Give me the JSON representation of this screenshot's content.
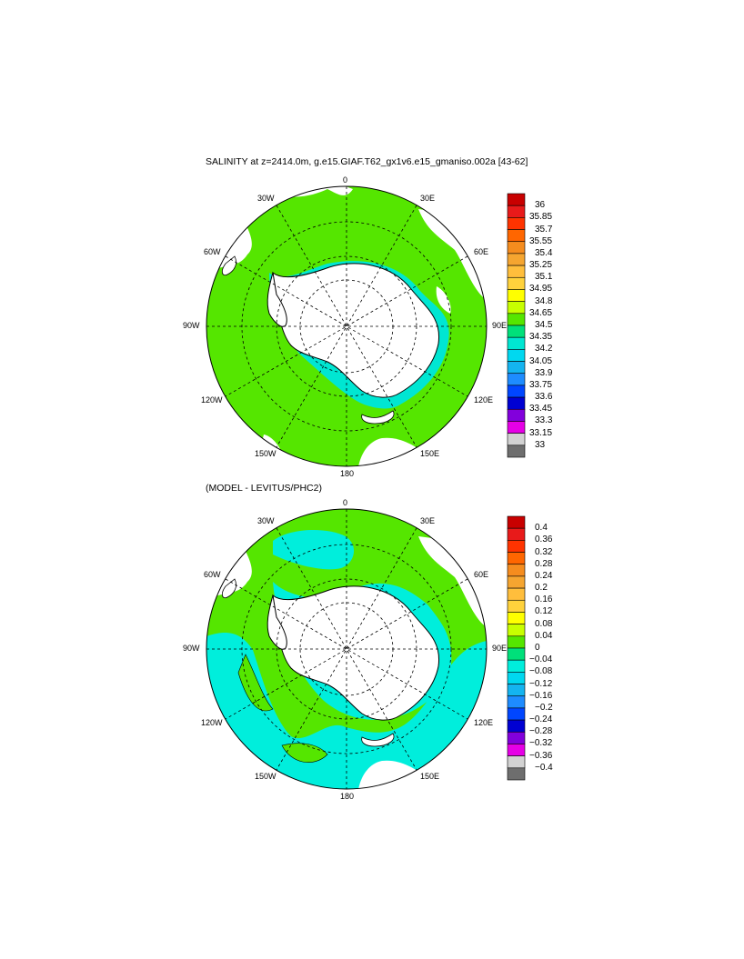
{
  "panel1": {
    "title": "SALINITY at z=2414.0m, g.e15.GIAF.T62_gx1v6.e15_gmaniso.002a [43-62]",
    "lon_labels": {
      "n": "0",
      "ne1": "30E",
      "ne2": "60E",
      "e": "90E",
      "se1": "120E",
      "se2": "150E",
      "s": "180",
      "sw1": "150W",
      "sw2": "120W",
      "w": "90W",
      "nw1": "60W",
      "nw2": "30W"
    },
    "colorbar": {
      "labels": [
        "36",
        "35.85",
        "35.7",
        "35.55",
        "35.4",
        "35.25",
        "35.1",
        "34.95",
        "34.8",
        "34.65",
        "34.5",
        "34.35",
        "34.2",
        "34.05",
        "33.9",
        "33.75",
        "33.6",
        "33.45",
        "33.3",
        "33.15",
        "33"
      ],
      "colors": [
        "#c80000",
        "#e81a1a",
        "#ff3300",
        "#ff6600",
        "#f58c1e",
        "#f5a530",
        "#ffbe3c",
        "#ffd23c",
        "#ffff00",
        "#c8ff00",
        "#55e600",
        "#00e07a",
        "#00e6d2",
        "#00d8f0",
        "#14b4f0",
        "#1e8cff",
        "#0046ff",
        "#0000d2",
        "#8200dc",
        "#e600e6",
        "#d2d2d2",
        "#6e6e6e"
      ]
    },
    "field_color": "#55e600"
  },
  "panel2": {
    "title": "(MODEL - LEVITUS/PHC2)",
    "lon_labels": {
      "n": "0",
      "ne1": "30E",
      "ne2": "60E",
      "e": "90E",
      "se1": "120E",
      "se2": "150E",
      "s": "180",
      "sw1": "150W",
      "sw2": "120W",
      "w": "90W",
      "nw1": "60W",
      "nw2": "30W"
    },
    "colorbar": {
      "labels": [
        "0.4",
        "0.36",
        "0.32",
        "0.28",
        "0.24",
        "0.2",
        "0.16",
        "0.12",
        "0.08",
        "0.04",
        "0",
        "−0.04",
        "−0.08",
        "−0.12",
        "−0.16",
        "−0.2",
        "−0.24",
        "−0.28",
        "−0.32",
        "−0.36",
        "−0.4"
      ],
      "colors": [
        "#c80000",
        "#e81a1a",
        "#ff3300",
        "#ff6600",
        "#f58c1e",
        "#f5a530",
        "#ffbe3c",
        "#ffd23c",
        "#ffff00",
        "#c8ff00",
        "#55e600",
        "#00e07a",
        "#00eedc",
        "#00d8f0",
        "#14b4f0",
        "#1e8cff",
        "#0046ff",
        "#0000d2",
        "#8200dc",
        "#e600e6",
        "#d2d2d2",
        "#6e6e6e"
      ]
    },
    "field_colors": {
      "positive": "#55e600",
      "negative": "#00eedc"
    }
  }
}
